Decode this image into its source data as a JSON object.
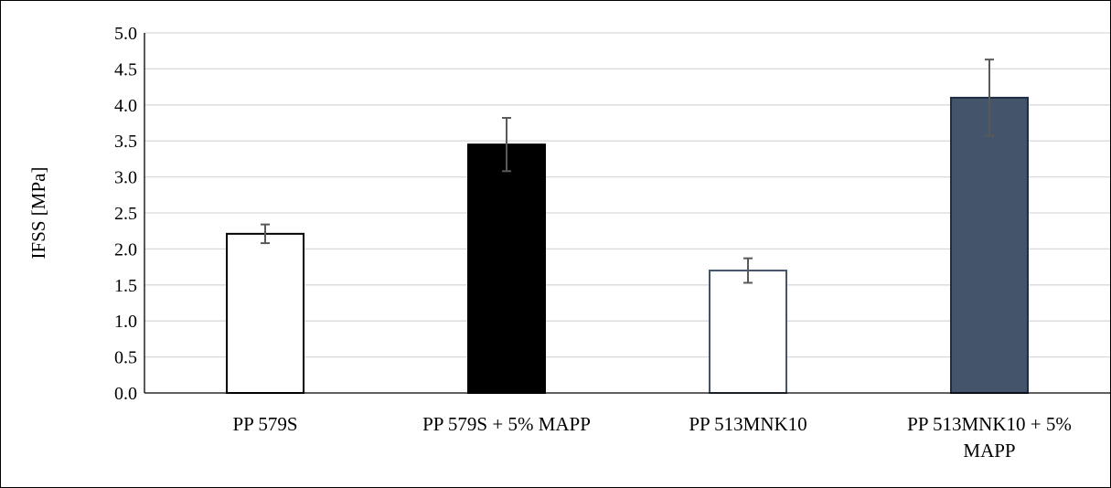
{
  "chart_data": {
    "type": "bar",
    "title": "",
    "xlabel": "",
    "ylabel": "IFSS [MPa]",
    "ylim": [
      0,
      5
    ],
    "ytick_step": 0.5,
    "yticks": [
      "0.0",
      "0.5",
      "1.0",
      "1.5",
      "2.0",
      "2.5",
      "3.0",
      "3.5",
      "4.0",
      "4.5",
      "5.0"
    ],
    "grid": true,
    "legend": "none",
    "categories": [
      [
        "PP 579S"
      ],
      [
        "PP 579S + 5% MAPP"
      ],
      [
        "PP 513MNK10"
      ],
      [
        "PP 513MNK10 + 5%",
        "MAPP"
      ]
    ],
    "values": [
      2.21,
      3.45,
      1.7,
      4.1
    ],
    "error": [
      0.13,
      0.37,
      0.17,
      0.53
    ],
    "colors": {
      "fill": [
        "#ffffff",
        "#000000",
        "#ffffff",
        "#44546a"
      ],
      "stroke": [
        "#000000",
        "#000000",
        "#44546a",
        "#1f2d44"
      ],
      "errorbar": "#595959",
      "grid": "#d9d9d9",
      "axis": "#000000"
    }
  }
}
